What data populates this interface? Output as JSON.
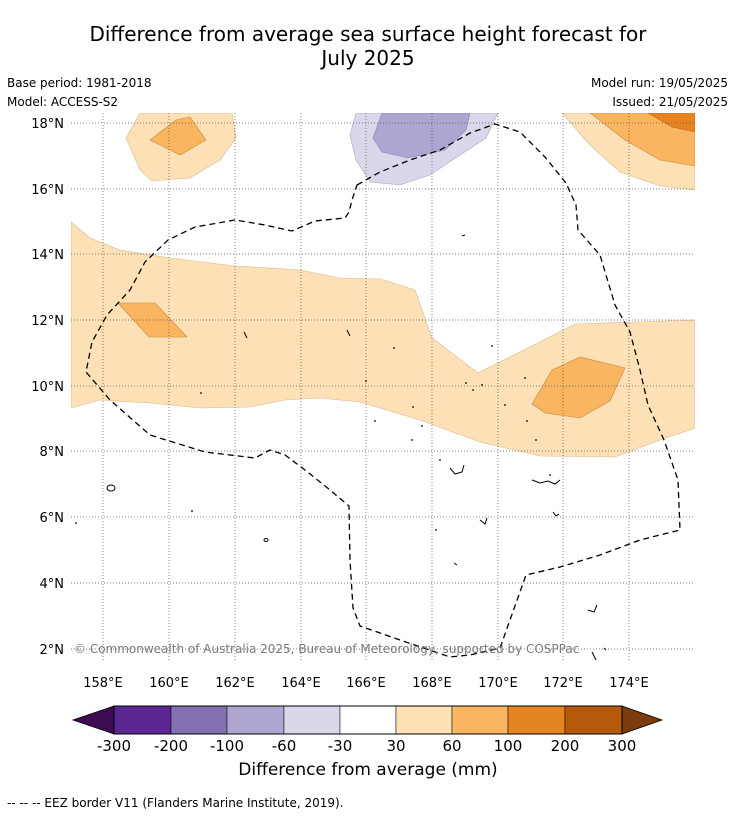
{
  "title": {
    "line1": "Difference from average sea surface height forecast for",
    "line2": "July 2025"
  },
  "meta": {
    "base_period": "Base period: 1981-2018",
    "model": "Model: ACCESS-S2",
    "model_run": "Model run: 19/05/2025",
    "issued": "Issued: 21/05/2025"
  },
  "map": {
    "lat_labels": [
      "18°N",
      "16°N",
      "14°N",
      "12°N",
      "10°N",
      "8°N",
      "6°N",
      "4°N",
      "2°N"
    ],
    "lon_labels": [
      "158°E",
      "160°E",
      "162°E",
      "164°E",
      "166°E",
      "168°E",
      "170°E",
      "172°E",
      "174°E"
    ],
    "copyright": "© Commonwealth of Australia 2025, Bureau of Meteorology, supported by COSPPac"
  },
  "colorbar": {
    "ticks": [
      "-300",
      "-200",
      "-100",
      "-60",
      "-30",
      "30",
      "60",
      "100",
      "200",
      "300"
    ],
    "colors": [
      "#3d0a54",
      "#5c2690",
      "#8370b2",
      "#aea5d0",
      "#d8d8ea",
      "#ffffff",
      "#fde0b5",
      "#f9b55f",
      "#e58420",
      "#b55a0c",
      "#7d3b0c"
    ],
    "label": "Difference from average (mm)"
  },
  "footnote": "--  --  -- EEZ border V11 (Flanders Marine Institute, 2019)."
}
